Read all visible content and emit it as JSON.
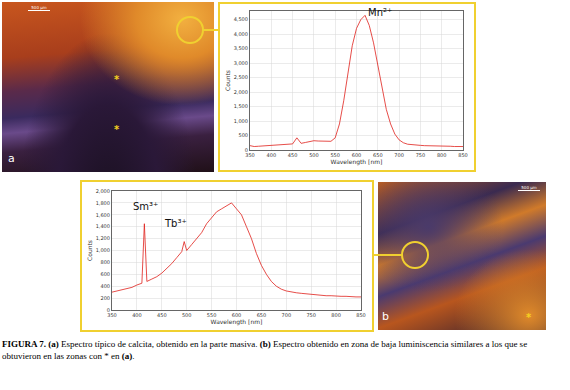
{
  "images": [
    {
      "label": "a",
      "markers": [
        "*",
        "*"
      ],
      "scale_bar": "500 µm"
    },
    {
      "label": "b",
      "markers": [
        "*"
      ],
      "scale_bar": "500 µm"
    }
  ],
  "chart_data": [
    {
      "type": "line",
      "color": "#e0201b",
      "xlabel": "Wavelength [nm]",
      "ylabel": "Counts",
      "grid": true,
      "x": [
        350,
        360,
        370,
        380,
        390,
        400,
        410,
        420,
        430,
        440,
        450,
        460,
        470,
        480,
        490,
        500,
        510,
        520,
        530,
        540,
        550,
        560,
        570,
        580,
        590,
        600,
        610,
        620,
        630,
        640,
        650,
        660,
        670,
        680,
        690,
        700,
        710,
        720,
        730,
        740,
        750,
        760,
        770,
        780,
        790,
        800,
        810,
        820,
        830,
        840,
        850
      ],
      "values": [
        150,
        120,
        130,
        140,
        150,
        160,
        170,
        180,
        190,
        200,
        210,
        420,
        230,
        260,
        300,
        320,
        310,
        300,
        290,
        300,
        420,
        900,
        1700,
        2700,
        3600,
        4200,
        4500,
        4650,
        4300,
        3700,
        2900,
        2100,
        1400,
        900,
        550,
        350,
        250,
        200,
        180,
        170,
        160,
        150,
        150,
        140,
        140,
        130,
        130,
        130,
        120,
        120,
        120
      ],
      "xlim": [
        350,
        850
      ],
      "xticks": [
        350,
        400,
        450,
        500,
        550,
        600,
        650,
        700,
        750,
        800,
        850
      ],
      "ylim": [
        0,
        4800
      ],
      "yticks": [
        0,
        500,
        {
          "value": 1000,
          "label": "1,000"
        },
        {
          "value": 1500,
          "label": "1,500"
        },
        {
          "value": 2000,
          "label": "2,000"
        },
        {
          "value": 2500,
          "label": "2,500"
        },
        {
          "value": 3000,
          "label": "3,000"
        },
        {
          "value": 3500,
          "label": "3,500"
        },
        {
          "value": 4000,
          "label": "4,000"
        },
        {
          "value": 4500,
          "label": "4,500"
        }
      ],
      "annotations": [
        {
          "text": "Mn²⁺",
          "x": 655,
          "y": 4500
        }
      ]
    },
    {
      "type": "line",
      "color": "#e0201b",
      "xlabel": "Wavelength [nm]",
      "ylabel": "Counts",
      "grid": true,
      "x": [
        350,
        360,
        370,
        380,
        390,
        400,
        410,
        415,
        420,
        430,
        440,
        450,
        460,
        470,
        480,
        490,
        495,
        500,
        510,
        520,
        530,
        540,
        550,
        560,
        570,
        580,
        590,
        600,
        610,
        620,
        630,
        640,
        650,
        660,
        670,
        680,
        690,
        700,
        710,
        720,
        730,
        740,
        750,
        760,
        770,
        780,
        790,
        800,
        810,
        820,
        830,
        840,
        850
      ],
      "values": [
        300,
        320,
        330,
        350,
        380,
        420,
        450,
        1450,
        480,
        520,
        560,
        620,
        700,
        780,
        880,
        980,
        1150,
        1000,
        1100,
        1200,
        1300,
        1450,
        1550,
        1650,
        1700,
        1750,
        1800,
        1700,
        1600,
        1400,
        1200,
        950,
        750,
        600,
        480,
        400,
        350,
        320,
        300,
        290,
        280,
        270,
        260,
        250,
        250,
        240,
        240,
        230,
        230,
        230,
        220,
        220,
        220
      ],
      "xlim": [
        350,
        850
      ],
      "xticks": [
        350,
        400,
        450,
        500,
        550,
        600,
        650,
        700,
        750,
        800,
        850
      ],
      "ylim": [
        0,
        2000
      ],
      "yticks": [
        0,
        200,
        400,
        600,
        800,
        {
          "value": 1000,
          "label": "1,000"
        },
        {
          "value": 1200,
          "label": "1,200"
        },
        {
          "value": 1400,
          "label": "1,400"
        },
        {
          "value": 1600,
          "label": "1,600"
        },
        {
          "value": 1800,
          "label": "1,800"
        },
        {
          "value": 2000,
          "label": "2,000"
        }
      ],
      "annotations": [
        {
          "text": "Sm³⁺",
          "x": 418,
          "y": 1620
        },
        {
          "text": "Tb³⁺",
          "x": 478,
          "y": 1330
        }
      ]
    }
  ],
  "caption": [
    {
      "text": "FIGURA 7.",
      "bold": true
    },
    {
      "text": " ",
      "bold": false
    },
    {
      "text": "(a)",
      "bold": true
    },
    {
      "text": " Espectro típico de calcita, obtenido en la parte masiva. ",
      "bold": false
    },
    {
      "text": "(b)",
      "bold": true
    },
    {
      "text": " Espectro obtenido en zona de baja luminiscencia similares a los que se obtuvieron en las zonas con * en ",
      "bold": false
    },
    {
      "text": "(a)",
      "bold": true
    },
    {
      "text": ".",
      "bold": false
    }
  ]
}
